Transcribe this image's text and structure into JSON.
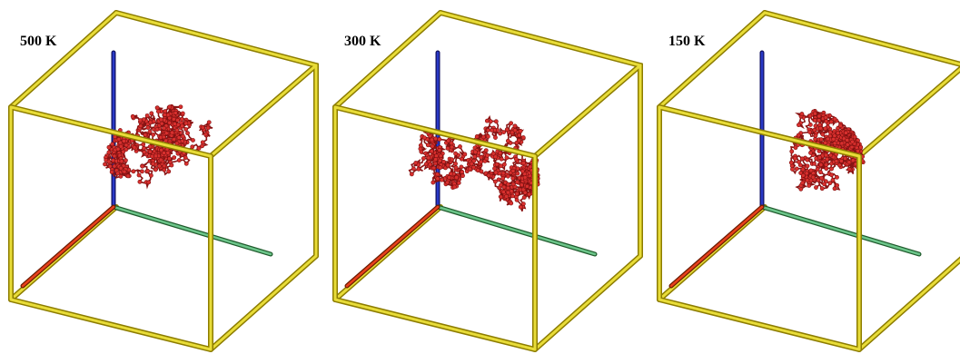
{
  "panels": [
    {
      "label": "500 K"
    },
    {
      "label": "300 K"
    },
    {
      "label": "150 K"
    }
  ]
}
